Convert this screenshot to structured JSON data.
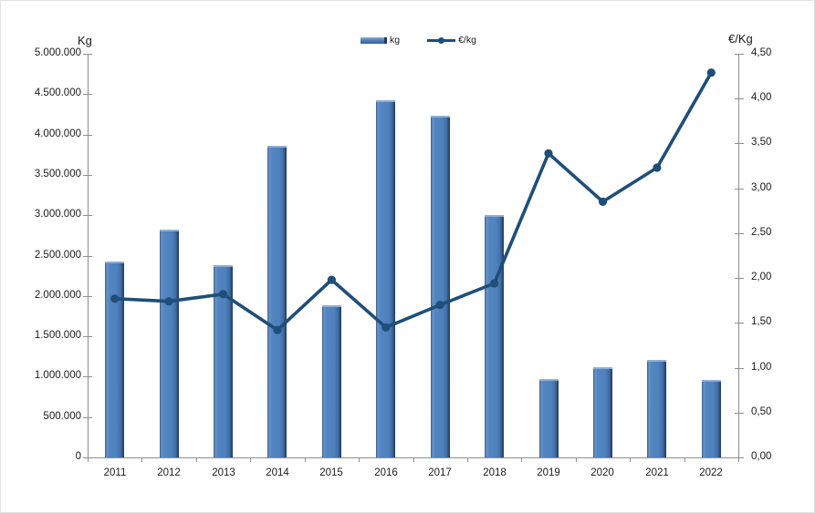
{
  "chart": {
    "left_axis_title": "Kg",
    "right_axis_title": "€/Kg",
    "legend": {
      "bar_label": "kg",
      "line_label": "€/kg"
    },
    "colors": {
      "bar_fill": "#4f81bd",
      "bar_edge_dark": "#1e3c66",
      "bar_edge_light": "#8fadd6",
      "line": "#1f4e79",
      "axis": "#8e8e8e",
      "text": "#1a1a1a"
    }
  },
  "chart_data": {
    "type": "bar+line",
    "title": "",
    "categories": [
      "2011",
      "2012",
      "2013",
      "2014",
      "2015",
      "2016",
      "2017",
      "2018",
      "2019",
      "2020",
      "2021",
      "2022"
    ],
    "series": [
      {
        "name": "kg",
        "type": "bar",
        "axis": "left",
        "color": "#4f81bd",
        "values": [
          2430000,
          2820000,
          2380000,
          3860000,
          1890000,
          4420000,
          4230000,
          3000000,
          975000,
          1115000,
          1210000,
          960000
        ]
      },
      {
        "name": "€/kg",
        "type": "line",
        "axis": "right",
        "color": "#1f4e79",
        "values": [
          1.77,
          1.74,
          1.82,
          1.42,
          1.98,
          1.45,
          1.7,
          1.94,
          3.39,
          2.85,
          3.23,
          4.29
        ]
      }
    ],
    "left_axis": {
      "title": "Kg",
      "min": 0,
      "max": 5000000,
      "step": 500000,
      "tick_labels": [
        "0",
        "500.000",
        "1.000.000",
        "1.500.000",
        "2.000.000",
        "2.500.000",
        "3.000.000",
        "3.500.000",
        "4.000.000",
        "4.500.000",
        "5.000.000"
      ]
    },
    "right_axis": {
      "title": "€/Kg",
      "min": 0,
      "max": 4.5,
      "step": 0.5,
      "tick_labels": [
        "0,00",
        "0,50",
        "1,00",
        "1,50",
        "2,00",
        "2,50",
        "3,00",
        "3,50",
        "4,00",
        "4,50"
      ]
    },
    "grid": false,
    "legend_position": "top-center"
  }
}
